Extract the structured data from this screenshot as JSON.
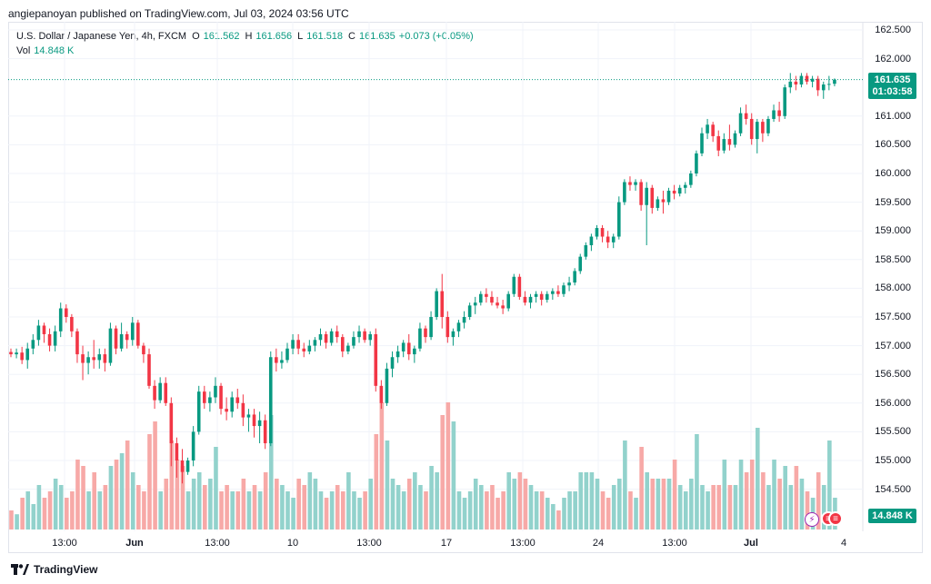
{
  "header": {
    "publisher_line": "angiepanoyan published on TradingView.com, Jul 03, 2024 03:56 UTC"
  },
  "legend": {
    "symbol": "U.S. Dollar / Japanese Yen, 4h, FXCM",
    "open_key": "O",
    "open": "161.562",
    "high_key": "H",
    "high": "161.656",
    "low_key": "L",
    "low": "161.518",
    "close_key": "C",
    "close": "161.635",
    "change": "+0.073 (+0.05%)",
    "vol_key": "Vol",
    "vol": "14.848 K"
  },
  "price_axis": {
    "labels": [
      "162.500",
      "162.000",
      "161.000",
      "160.500",
      "160.000",
      "159.500",
      "159.000",
      "158.500",
      "158.000",
      "157.500",
      "157.000",
      "156.500",
      "156.000",
      "155.500",
      "155.000",
      "154.500"
    ]
  },
  "last_price": {
    "price": "161.635",
    "countdown": "01:03:58"
  },
  "volume_badge": "14.848 K",
  "time_axis": [
    {
      "label": "13:00",
      "bold": false
    },
    {
      "label": "Jun",
      "bold": true
    },
    {
      "label": "13:00",
      "bold": false
    },
    {
      "label": "10",
      "bold": false
    },
    {
      "label": "13:00",
      "bold": false
    },
    {
      "label": "17",
      "bold": false
    },
    {
      "label": "13:00",
      "bold": false
    },
    {
      "label": "24",
      "bold": false
    },
    {
      "label": "13:00",
      "bold": false
    },
    {
      "label": "Jul",
      "bold": true
    },
    {
      "label": "4",
      "bold": false
    }
  ],
  "footer": {
    "brand": "TradingView"
  },
  "colors": {
    "up": "#089981",
    "down": "#f23645",
    "up_vol": "#92d2cc",
    "down_vol": "#f7a9a7"
  },
  "chart_data": {
    "type": "candlestick",
    "interval": "4h",
    "ylim": [
      154.1,
      162.9
    ],
    "x_start": "2024-05-29 12:00",
    "candles": [
      [
        156.89,
        156.95,
        156.8,
        156.85,
        0.15
      ],
      [
        156.85,
        156.95,
        156.78,
        156.88,
        0.12
      ],
      [
        156.88,
        156.98,
        156.68,
        156.75,
        0.25
      ],
      [
        156.75,
        157.05,
        156.6,
        156.95,
        0.3
      ],
      [
        156.95,
        157.2,
        156.85,
        157.1,
        0.2
      ],
      [
        157.1,
        157.45,
        157.0,
        157.35,
        0.35
      ],
      [
        157.35,
        157.4,
        157.05,
        157.2,
        0.25
      ],
      [
        157.2,
        157.3,
        156.9,
        157.0,
        0.3
      ],
      [
        157.0,
        157.35,
        156.9,
        157.25,
        0.4
      ],
      [
        157.25,
        157.75,
        157.15,
        157.65,
        0.35
      ],
      [
        157.65,
        157.72,
        157.4,
        157.5,
        0.25
      ],
      [
        157.5,
        157.55,
        157.15,
        157.25,
        0.3
      ],
      [
        157.25,
        157.3,
        156.7,
        156.85,
        0.55
      ],
      [
        156.85,
        157.0,
        156.4,
        156.7,
        0.5
      ],
      [
        156.7,
        156.9,
        156.5,
        156.8,
        0.3
      ],
      [
        156.8,
        157.1,
        156.6,
        156.75,
        0.45
      ],
      [
        156.75,
        156.95,
        156.6,
        156.85,
        0.3
      ],
      [
        156.85,
        156.95,
        156.55,
        156.7,
        0.35
      ],
      [
        156.7,
        157.4,
        156.65,
        157.3,
        0.5
      ],
      [
        157.3,
        157.35,
        156.85,
        156.95,
        0.55
      ],
      [
        156.95,
        157.4,
        156.9,
        157.2,
        0.6
      ],
      [
        157.2,
        157.25,
        156.95,
        157.1,
        0.7
      ],
      [
        157.1,
        157.5,
        157.0,
        157.4,
        0.45
      ],
      [
        157.4,
        157.45,
        156.95,
        157.0,
        0.35
      ],
      [
        157.0,
        157.05,
        156.7,
        156.85,
        0.3
      ],
      [
        156.85,
        156.95,
        156.25,
        156.3,
        0.75
      ],
      [
        156.3,
        156.4,
        155.9,
        156.05,
        0.85
      ],
      [
        156.05,
        156.45,
        156.0,
        156.35,
        0.3
      ],
      [
        156.35,
        156.45,
        155.95,
        156.0,
        0.4
      ],
      [
        156.0,
        156.1,
        154.9,
        155.3,
        0.7
      ],
      [
        155.3,
        155.4,
        154.7,
        155.0,
        0.55
      ],
      [
        155.0,
        155.2,
        154.6,
        154.8,
        0.5
      ],
      [
        154.8,
        155.05,
        154.75,
        155.0,
        0.3
      ],
      [
        155.0,
        155.6,
        154.9,
        155.5,
        0.4
      ],
      [
        155.5,
        156.3,
        155.45,
        156.2,
        0.45
      ],
      [
        156.2,
        156.3,
        155.9,
        156.0,
        0.35
      ],
      [
        156.0,
        156.2,
        155.85,
        156.1,
        0.4
      ],
      [
        156.1,
        156.45,
        156.0,
        156.3,
        0.65
      ],
      [
        156.3,
        156.35,
        155.8,
        155.9,
        0.3
      ],
      [
        155.9,
        156.1,
        155.7,
        155.85,
        0.35
      ],
      [
        155.85,
        156.2,
        155.75,
        156.1,
        0.3
      ],
      [
        156.1,
        156.25,
        155.9,
        156.0,
        0.3
      ],
      [
        156.0,
        156.15,
        155.6,
        155.75,
        0.4
      ],
      [
        155.75,
        155.9,
        155.5,
        155.8,
        0.3
      ],
      [
        155.8,
        155.9,
        155.4,
        155.6,
        0.35
      ],
      [
        155.6,
        155.85,
        155.3,
        155.7,
        0.3
      ],
      [
        155.7,
        155.8,
        155.2,
        155.3,
        0.45
      ],
      [
        155.3,
        156.9,
        155.25,
        156.8,
        0.9
      ],
      [
        156.8,
        156.95,
        156.55,
        156.7,
        0.4
      ],
      [
        156.7,
        156.9,
        156.6,
        156.75,
        0.35
      ],
      [
        156.75,
        157.05,
        156.7,
        156.95,
        0.3
      ],
      [
        156.95,
        157.2,
        156.85,
        157.1,
        0.25
      ],
      [
        157.1,
        157.2,
        156.85,
        156.95,
        0.4
      ],
      [
        156.95,
        157.05,
        156.8,
        156.9,
        0.35
      ],
      [
        156.9,
        157.1,
        156.85,
        157.0,
        0.45
      ],
      [
        157.0,
        157.15,
        156.9,
        157.1,
        0.4
      ],
      [
        157.1,
        157.3,
        157.0,
        157.2,
        0.3
      ],
      [
        157.2,
        157.25,
        156.95,
        157.05,
        0.25
      ],
      [
        157.05,
        157.3,
        157.0,
        157.25,
        0.3
      ],
      [
        157.25,
        157.35,
        157.05,
        157.15,
        0.35
      ],
      [
        157.15,
        157.2,
        156.8,
        156.9,
        0.3
      ],
      [
        156.9,
        157.05,
        156.85,
        157.0,
        0.45
      ],
      [
        157.0,
        157.25,
        156.95,
        157.15,
        0.3
      ],
      [
        157.15,
        157.35,
        157.05,
        157.25,
        0.25
      ],
      [
        157.25,
        157.3,
        157.05,
        157.1,
        0.3
      ],
      [
        157.1,
        157.25,
        157.0,
        157.2,
        0.4
      ],
      [
        157.2,
        157.3,
        156.2,
        156.3,
        0.75
      ],
      [
        156.3,
        156.4,
        155.9,
        156.0,
        1.0
      ],
      [
        156.0,
        156.7,
        155.95,
        156.6,
        0.7
      ],
      [
        156.6,
        156.9,
        156.45,
        156.8,
        0.4
      ],
      [
        156.8,
        157.0,
        156.7,
        156.9,
        0.35
      ],
      [
        156.9,
        157.1,
        156.8,
        157.05,
        0.3
      ],
      [
        157.05,
        157.2,
        156.75,
        156.85,
        0.4
      ],
      [
        156.85,
        157.0,
        156.7,
        156.95,
        0.45
      ],
      [
        156.95,
        157.4,
        156.9,
        157.3,
        0.35
      ],
      [
        157.3,
        157.35,
        157.05,
        157.15,
        0.3
      ],
      [
        157.15,
        157.6,
        157.1,
        157.5,
        0.5
      ],
      [
        157.5,
        158.0,
        157.45,
        157.95,
        0.45
      ],
      [
        157.95,
        158.25,
        157.3,
        157.5,
        0.9
      ],
      [
        157.5,
        157.6,
        157.05,
        157.15,
        1.0
      ],
      [
        157.15,
        157.3,
        157.0,
        157.25,
        0.85
      ],
      [
        157.25,
        157.45,
        157.15,
        157.4,
        0.3
      ],
      [
        157.4,
        157.6,
        157.3,
        157.5,
        0.25
      ],
      [
        157.5,
        157.75,
        157.45,
        157.7,
        0.3
      ],
      [
        157.7,
        157.85,
        157.55,
        157.75,
        0.4
      ],
      [
        157.75,
        157.95,
        157.7,
        157.9,
        0.35
      ],
      [
        157.9,
        158.0,
        157.75,
        157.85,
        0.3
      ],
      [
        157.85,
        157.95,
        157.7,
        157.75,
        0.35
      ],
      [
        157.75,
        157.85,
        157.65,
        157.7,
        0.25
      ],
      [
        157.7,
        157.8,
        157.55,
        157.65,
        0.3
      ],
      [
        157.65,
        157.95,
        157.6,
        157.9,
        0.45
      ],
      [
        157.9,
        158.25,
        157.85,
        158.2,
        0.4
      ],
      [
        158.2,
        158.25,
        157.8,
        157.85,
        0.45
      ],
      [
        157.85,
        157.95,
        157.7,
        157.75,
        0.4
      ],
      [
        157.75,
        157.9,
        157.65,
        157.85,
        0.35
      ],
      [
        157.85,
        157.95,
        157.75,
        157.9,
        0.3
      ],
      [
        157.9,
        157.95,
        157.7,
        157.8,
        0.3
      ],
      [
        157.8,
        157.95,
        157.75,
        157.9,
        0.25
      ],
      [
        157.9,
        158.0,
        157.8,
        157.95,
        0.2
      ],
      [
        157.95,
        158.05,
        157.85,
        157.9,
        0.15
      ],
      [
        157.9,
        158.1,
        157.85,
        158.05,
        0.25
      ],
      [
        158.05,
        158.2,
        157.95,
        158.1,
        0.3
      ],
      [
        158.1,
        158.35,
        158.05,
        158.3,
        0.3
      ],
      [
        158.3,
        158.6,
        158.25,
        158.55,
        0.45
      ],
      [
        158.55,
        158.8,
        158.5,
        158.75,
        0.45
      ],
      [
        158.75,
        158.95,
        158.65,
        158.9,
        0.45
      ],
      [
        158.9,
        159.1,
        158.85,
        159.05,
        0.4
      ],
      [
        159.05,
        159.1,
        158.8,
        158.9,
        0.3
      ],
      [
        158.9,
        159.0,
        158.7,
        158.8,
        0.25
      ],
      [
        158.8,
        158.95,
        158.7,
        158.9,
        0.35
      ],
      [
        158.9,
        159.6,
        158.85,
        159.5,
        0.4
      ],
      [
        159.5,
        159.9,
        159.45,
        159.85,
        0.7
      ],
      [
        159.85,
        159.95,
        159.7,
        159.8,
        0.3
      ],
      [
        159.8,
        159.9,
        159.7,
        159.85,
        0.25
      ],
      [
        159.85,
        159.9,
        159.35,
        159.45,
        0.65
      ],
      [
        159.45,
        159.85,
        158.75,
        159.75,
        0.45
      ],
      [
        159.75,
        159.8,
        159.3,
        159.4,
        0.4
      ],
      [
        159.4,
        159.6,
        159.35,
        159.55,
        0.4
      ],
      [
        159.55,
        159.7,
        159.3,
        159.5,
        0.4
      ],
      [
        159.5,
        159.75,
        159.45,
        159.7,
        0.4
      ],
      [
        159.7,
        159.8,
        159.55,
        159.65,
        0.55
      ],
      [
        159.65,
        159.8,
        159.6,
        159.75,
        0.35
      ],
      [
        159.75,
        159.85,
        159.65,
        159.8,
        0.3
      ],
      [
        159.8,
        160.05,
        159.75,
        160.0,
        0.4
      ],
      [
        160.0,
        160.4,
        159.95,
        160.35,
        0.75
      ],
      [
        160.35,
        160.8,
        160.3,
        160.7,
        0.35
      ],
      [
        160.7,
        160.95,
        160.6,
        160.85,
        0.3
      ],
      [
        160.85,
        160.9,
        160.55,
        160.65,
        0.35
      ],
      [
        160.65,
        160.75,
        160.3,
        160.4,
        0.35
      ],
      [
        160.4,
        160.7,
        160.35,
        160.6,
        0.55
      ],
      [
        160.6,
        160.85,
        160.4,
        160.5,
        0.35
      ],
      [
        160.5,
        160.75,
        160.45,
        160.7,
        0.35
      ],
      [
        160.7,
        161.15,
        160.65,
        161.05,
        0.55
      ],
      [
        161.05,
        161.2,
        160.85,
        160.95,
        0.45
      ],
      [
        160.95,
        161.05,
        160.5,
        160.6,
        0.55
      ],
      [
        160.6,
        160.95,
        160.35,
        160.9,
        0.8
      ],
      [
        160.9,
        160.95,
        160.55,
        160.7,
        0.45
      ],
      [
        160.7,
        161.0,
        160.65,
        160.95,
        0.35
      ],
      [
        160.95,
        161.2,
        160.9,
        161.1,
        0.55
      ],
      [
        161.1,
        161.25,
        160.9,
        161.0,
        0.4
      ],
      [
        161.0,
        161.55,
        160.95,
        161.5,
        0.5
      ],
      [
        161.5,
        161.75,
        161.4,
        161.6,
        0.35
      ],
      [
        161.6,
        161.7,
        161.45,
        161.55,
        0.5
      ],
      [
        161.55,
        161.75,
        161.5,
        161.7,
        0.4
      ],
      [
        161.7,
        161.75,
        161.55,
        161.6,
        0.3
      ],
      [
        161.6,
        161.7,
        161.5,
        161.65,
        0.25
      ],
      [
        161.65,
        161.7,
        161.35,
        161.45,
        0.45
      ],
      [
        161.45,
        161.6,
        161.3,
        161.55,
        0.35
      ],
      [
        161.55,
        161.7,
        161.45,
        161.56,
        0.7
      ],
      [
        161.562,
        161.656,
        161.518,
        161.635,
        0.25
      ]
    ]
  }
}
